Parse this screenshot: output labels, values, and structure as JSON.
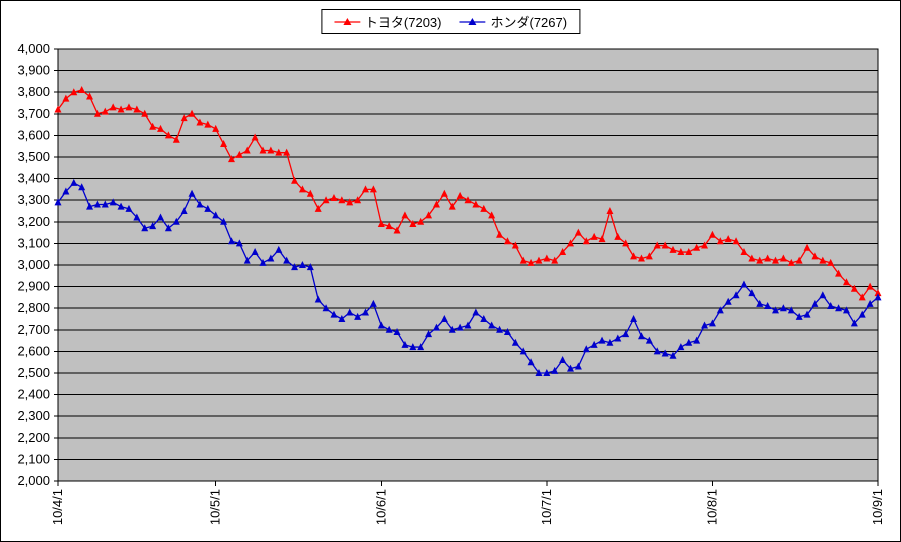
{
  "chart_data": {
    "type": "line",
    "title": "",
    "xlabel": "",
    "ylabel": "",
    "ylim": [
      2000,
      4000
    ],
    "y_step": 100,
    "grid": true,
    "legend_position": "top-center",
    "plot_bg": "#c0c0c0",
    "x_tick_labels": [
      "10/4/1",
      "10/5/1",
      "10/6/1",
      "10/7/1",
      "10/8/1",
      "10/9/1"
    ],
    "x_tick_indices": [
      0,
      20,
      41,
      62,
      83,
      104
    ],
    "series": [
      {
        "name": "トヨタ(7203)",
        "color": "#ff0000",
        "marker": "triangle",
        "values": [
          3720,
          3770,
          3800,
          3810,
          3780,
          3700,
          3710,
          3730,
          3720,
          3730,
          3720,
          3700,
          3640,
          3630,
          3600,
          3580,
          3680,
          3700,
          3660,
          3650,
          3630,
          3560,
          3490,
          3510,
          3530,
          3590,
          3530,
          3530,
          3520,
          3520,
          3390,
          3350,
          3330,
          3260,
          3300,
          3310,
          3300,
          3290,
          3300,
          3350,
          3350,
          3190,
          3180,
          3160,
          3230,
          3190,
          3200,
          3230,
          3280,
          3330,
          3270,
          3320,
          3300,
          3280,
          3260,
          3230,
          3140,
          3110,
          3090,
          3020,
          3010,
          3020,
          3030,
          3020,
          3060,
          3100,
          3150,
          3110,
          3130,
          3120,
          3250,
          3130,
          3100,
          3040,
          3030,
          3040,
          3090,
          3090,
          3070,
          3060,
          3060,
          3080,
          3090,
          3140,
          3110,
          3120,
          3110,
          3060,
          3030,
          3020,
          3030,
          3020,
          3030,
          3010,
          3020,
          3080,
          3040,
          3020,
          3010,
          2960,
          2920,
          2890,
          2850,
          2900,
          2870
        ]
      },
      {
        "name": "ホンダ(7267)",
        "color": "#0000cc",
        "marker": "triangle",
        "values": [
          3290,
          3340,
          3380,
          3360,
          3270,
          3280,
          3280,
          3290,
          3270,
          3260,
          3220,
          3170,
          3180,
          3220,
          3170,
          3200,
          3250,
          3330,
          3280,
          3260,
          3230,
          3200,
          3110,
          3100,
          3020,
          3060,
          3010,
          3030,
          3070,
          3020,
          2990,
          3000,
          2990,
          2840,
          2800,
          2770,
          2750,
          2780,
          2760,
          2780,
          2820,
          2720,
          2700,
          2690,
          2630,
          2620,
          2620,
          2680,
          2710,
          2750,
          2700,
          2710,
          2720,
          2780,
          2750,
          2720,
          2700,
          2690,
          2640,
          2600,
          2550,
          2500,
          2500,
          2510,
          2560,
          2520,
          2530,
          2610,
          2630,
          2650,
          2640,
          2660,
          2680,
          2750,
          2670,
          2650,
          2600,
          2590,
          2580,
          2620,
          2640,
          2650,
          2720,
          2730,
          2790,
          2830,
          2860,
          2910,
          2870,
          2820,
          2810,
          2790,
          2800,
          2790,
          2760,
          2770,
          2820,
          2860,
          2810,
          2800,
          2790,
          2730,
          2770,
          2820,
          2850
        ]
      }
    ]
  }
}
